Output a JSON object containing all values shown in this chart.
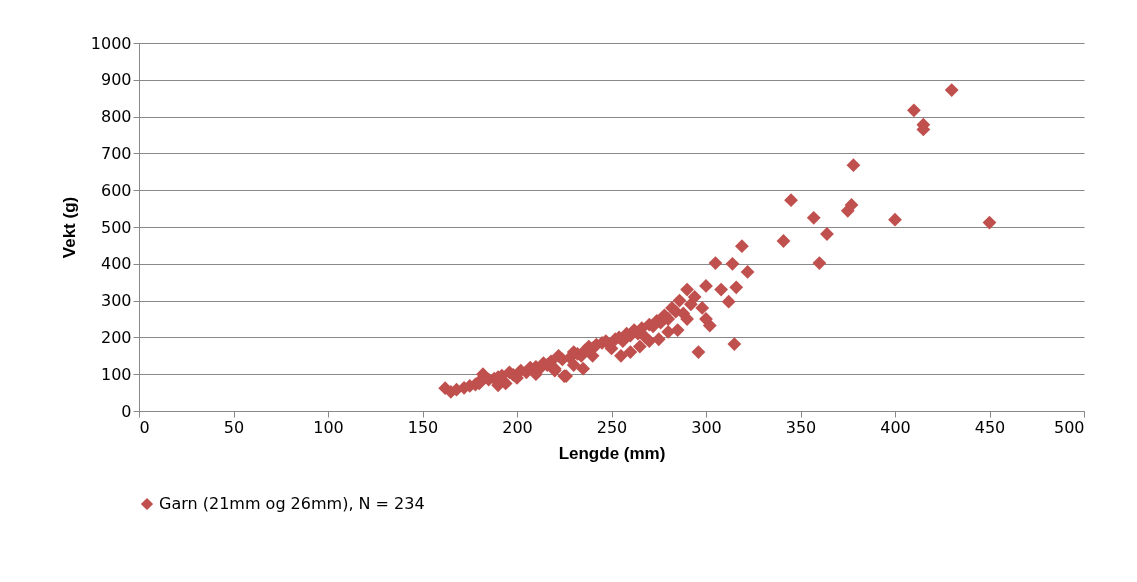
{
  "chart_data": {
    "type": "scatter",
    "xlabel": "Lengde (mm)",
    "ylabel": "Vekt (g)",
    "xlim": [
      0,
      500
    ],
    "ylim": [
      0,
      1000
    ],
    "xticks": [
      0,
      50,
      100,
      150,
      200,
      250,
      300,
      350,
      400,
      450,
      500
    ],
    "yticks": [
      0,
      100,
      200,
      300,
      400,
      500,
      600,
      700,
      800,
      900,
      1000
    ],
    "grid": "y",
    "legend": "bottom",
    "marker": "diamond",
    "series": [
      {
        "name": "Garn (21mm og 26mm), N = 234",
        "color": "#c0504d",
        "x": [
          162,
          165,
          168,
          172,
          175,
          178,
          180,
          182,
          185,
          188,
          190,
          192,
          194,
          196,
          198,
          202,
          205,
          207,
          210,
          212,
          214,
          216,
          218,
          220,
          222,
          224,
          226,
          228,
          230,
          232,
          234,
          236,
          238,
          240,
          242,
          245,
          247,
          252,
          254,
          256,
          258,
          260,
          262,
          264,
          266,
          268,
          270,
          272,
          274,
          276,
          278,
          280,
          282,
          284,
          286,
          288,
          290,
          292,
          294,
          296,
          298,
          300,
          302,
          305,
          308,
          312,
          314,
          315,
          316,
          319,
          322,
          341,
          345,
          357,
          360,
          364,
          375,
          377,
          378,
          400,
          410,
          415,
          415,
          430,
          450,
          180,
          190,
          200,
          210,
          220,
          230,
          240,
          250,
          260,
          270,
          280,
          290,
          225,
          235,
          255,
          265,
          275,
          285,
          300
        ],
        "values": [
          62,
          52,
          58,
          63,
          68,
          72,
          80,
          100,
          85,
          88,
          92,
          96,
          75,
          105,
          98,
          110,
          105,
          118,
          120,
          115,
          130,
          125,
          135,
          110,
          150,
          140,
          95,
          145,
          160,
          155,
          150,
          165,
          175,
          170,
          180,
          185,
          190,
          195,
          200,
          190,
          210,
          205,
          220,
          210,
          225,
          200,
          235,
          230,
          245,
          240,
          260,
          250,
          280,
          270,
          300,
          265,
          330,
          290,
          310,
          160,
          280,
          340,
          232,
          402,
          330,
          297,
          400,
          182,
          336,
          448,
          378,
          462,
          573,
          525,
          402,
          481,
          544,
          560,
          668,
          520,
          817,
          778,
          765,
          872,
          512,
          75,
          70,
          90,
          100,
          115,
          125,
          150,
          170,
          160,
          190,
          215,
          250,
          95,
          115,
          150,
          175,
          195,
          220,
          250
        ]
      }
    ]
  }
}
